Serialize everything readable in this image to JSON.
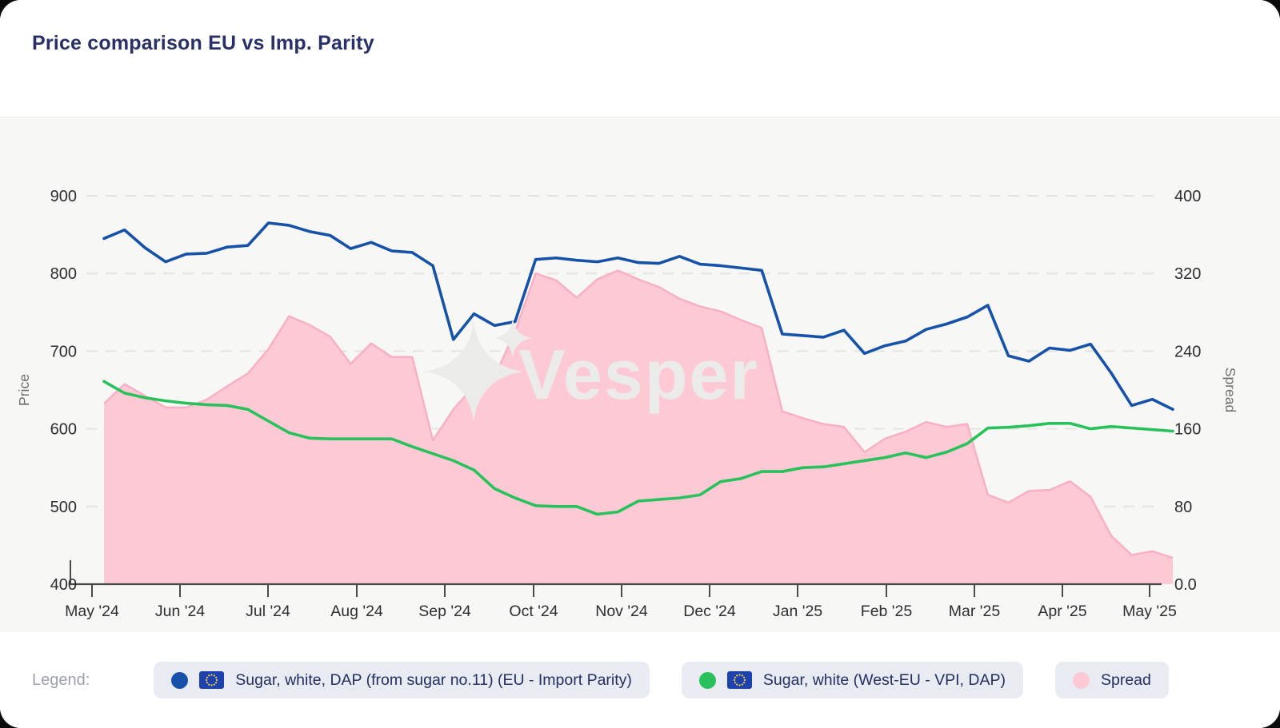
{
  "header": {
    "title": "Price comparison EU vs Imp. Parity"
  },
  "watermark": {
    "text": "Vesper"
  },
  "colors": {
    "import_parity_line": "#1552a8",
    "vpi_line": "#29c15c",
    "spread_fill": "#fcc9d5",
    "spread_edge": "#f8b1c4",
    "grid": "#e4e4e1",
    "axis": "#4a4a4a",
    "tick_text": "#2e2e32",
    "axis_name_text": "#6f6f6f",
    "chart_bg": "#f7f7f5",
    "watermark_fill": "#ebebe9"
  },
  "chart_data": {
    "type": "line",
    "title": "Price comparison EU vs Imp. Parity",
    "x_tick_labels": [
      "May '24",
      "Jun '24",
      "Jul '24",
      "Aug '24",
      "Sep '24",
      "Oct '24",
      "Nov '24",
      "Dec '24",
      "Jan '25",
      "Feb '25",
      "Mar '25",
      "Apr '25",
      "May '25"
    ],
    "x_unit": "weekly samples, May 2024 - May 2025",
    "left_axis": {
      "label": "Price",
      "ticks": [
        "900",
        "800",
        "700",
        "600",
        "500",
        "400"
      ],
      "range": [
        400,
        900
      ],
      "grid": true
    },
    "right_axis": {
      "label": "Spread",
      "ticks": [
        "400",
        "320",
        "240",
        "160",
        "80",
        "0.0"
      ],
      "range": [
        0,
        400
      ]
    },
    "legend_position": "bottom",
    "series": [
      {
        "name": "Sugar, white, DAP (from sugar no.11) (EU - Import Parity)",
        "type": "line",
        "axis": "left",
        "values": [
          845,
          856,
          833,
          815,
          825,
          826,
          834,
          836,
          865,
          862,
          854,
          849,
          832,
          840,
          829,
          827,
          810,
          715,
          748,
          733,
          738,
          818,
          820,
          817,
          815,
          820,
          814,
          813,
          822,
          812,
          810,
          807,
          804,
          722,
          720,
          718,
          727,
          697,
          707,
          713,
          728,
          735,
          744,
          759,
          694,
          687,
          704,
          701,
          709,
          672,
          630,
          638,
          625
        ]
      },
      {
        "name": "Sugar, white (West-EU - VPI, DAP)",
        "type": "line",
        "axis": "left",
        "values": [
          661,
          646,
          640,
          636,
          633,
          631,
          630,
          625,
          610,
          595,
          588,
          587,
          587,
          587,
          587,
          577,
          568,
          559,
          547,
          523,
          511,
          501,
          500,
          500,
          490,
          493,
          507,
          509,
          511,
          515,
          532,
          536,
          545,
          545,
          550,
          551,
          555,
          559,
          563,
          569,
          563,
          570,
          581,
          601,
          602,
          604,
          607,
          607,
          600,
          603,
          601,
          599,
          597
        ]
      },
      {
        "name": "Spread",
        "type": "area",
        "axis": "right",
        "values": [
          186,
          206,
          194,
          182,
          182,
          190,
          204,
          217,
          242,
          276,
          267,
          255,
          227,
          248,
          234,
          234,
          148,
          180,
          204,
          214,
          260,
          320,
          313,
          295,
          314,
          323,
          314,
          306,
          294,
          286,
          281,
          272,
          264,
          178,
          171,
          165,
          162,
          136,
          150,
          157,
          167,
          162,
          165,
          92,
          84,
          96,
          97,
          106,
          90,
          50,
          30,
          34,
          27
        ]
      }
    ]
  },
  "legend": {
    "label": "Legend:",
    "items": [
      {
        "label": "Sugar, white, DAP (from sugar no.11) (EU - Import Parity)",
        "color": "#1552a8",
        "flag": "eu"
      },
      {
        "label": "Sugar, white (West-EU - VPI, DAP)",
        "color": "#29c15c",
        "flag": "eu"
      },
      {
        "label": "Spread",
        "color": "#fcc9d5",
        "flag": null
      }
    ]
  }
}
